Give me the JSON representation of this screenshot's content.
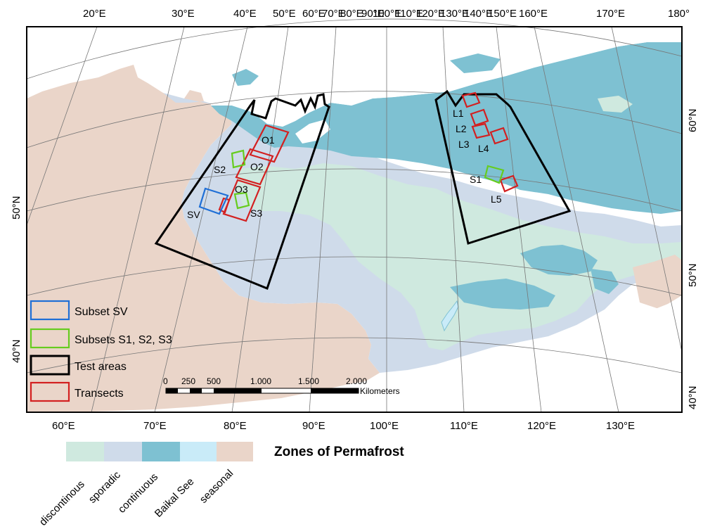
{
  "top_lon_labels": [
    "20°E",
    "30°E",
    "40°E",
    "50°E",
    "60°E",
    "70°E",
    "80°E",
    "90°E",
    "100°E",
    "110°E",
    "120°E",
    "130°E",
    "140°E",
    "150°E",
    "160°E",
    "170°E",
    "180°"
  ],
  "bottom_lon_labels": [
    "60°E",
    "70°E",
    "80°E",
    "90°E",
    "100°E",
    "110°E",
    "120°E",
    "130°E"
  ],
  "left_lat_labels": [
    "50°N",
    "40°N"
  ],
  "right_lat_labels": [
    "60°N",
    "50°N",
    "40°N"
  ],
  "area_labels": [
    "O1",
    "O2",
    "O3",
    "S2",
    "S3",
    "SV",
    "L1",
    "L2",
    "L3",
    "L4",
    "S1",
    "L5"
  ],
  "legend": {
    "subset_sv": "Subset SV",
    "subsets_s": "Subsets S1, S2, S3",
    "test_areas": "Test areas",
    "transects": "Transects"
  },
  "scale_bar": {
    "ticks": [
      "0",
      "250",
      "500",
      "1.000",
      "1.500",
      "2.000"
    ],
    "unit": "Kilometers"
  },
  "zones": {
    "title": "Zones of Permafrost",
    "items": [
      {
        "label": "discontinous",
        "color": "#cfe9df"
      },
      {
        "label": "sporadic",
        "color": "#cfdbea"
      },
      {
        "label": "continuous",
        "color": "#7ec1d2"
      },
      {
        "label": "Baikal See",
        "color": "#c9ebf8"
      },
      {
        "label": "seasonal",
        "color": "#ead5c9"
      }
    ]
  },
  "colors": {
    "subset_sv": "#1f6fd6",
    "subsets_s": "#66cc1f",
    "test_areas": "#000000",
    "transects": "#d32020",
    "sea": "#ffffff"
  }
}
